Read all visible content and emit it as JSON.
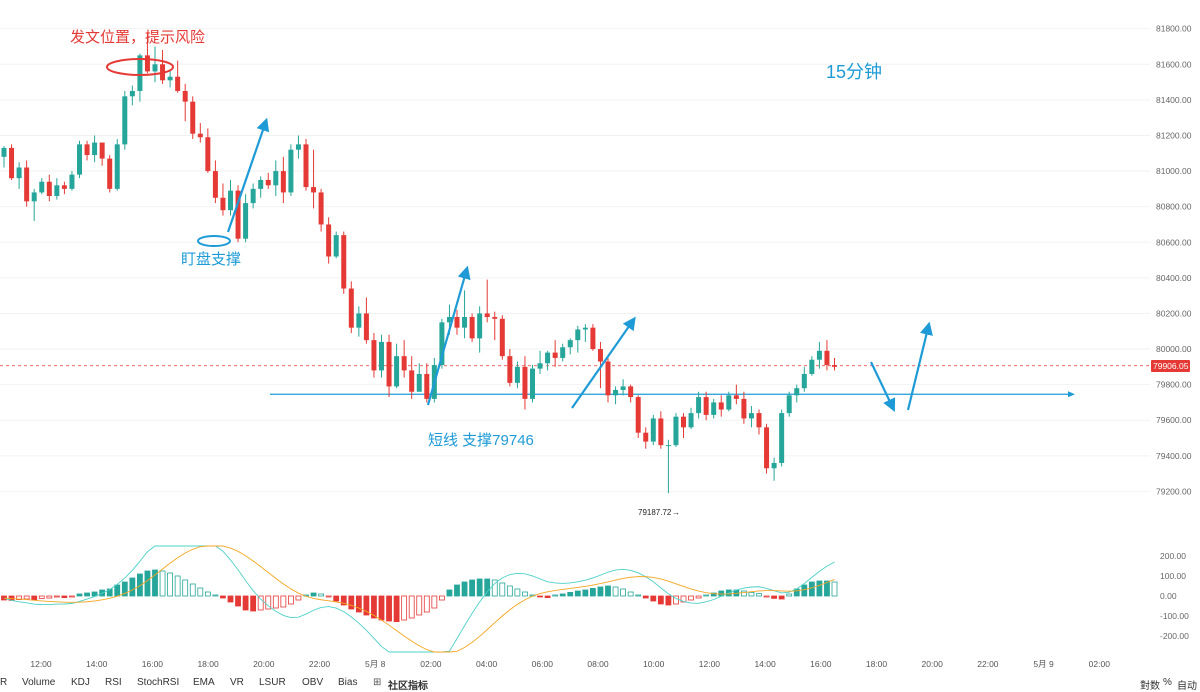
{
  "annotations": {
    "post_position": "发文位置，提示风险",
    "timeframe": "15分钟",
    "watch_support": "盯盘支撑",
    "short_support": "短线 支撑79746",
    "low_label": "79187.72"
  },
  "current_price": {
    "value": "79906.05",
    "color": "#e53935"
  },
  "support_line": {
    "value": 79746,
    "color": "#1e9bd7"
  },
  "colors": {
    "up": "#26a69a",
    "down": "#e53935",
    "annotation_red": "#e53935",
    "annotation_blue": "#1e9bd7"
  },
  "indicator_tabs": [
    "R",
    "Volume",
    "KDJ",
    "RSI",
    "StochRSI",
    "EMA",
    "VR",
    "LSUR",
    "OBV",
    "Bias"
  ],
  "community_label": "社区指标",
  "bottom_right": {
    "auto_fit": "對",
    "log": "對数",
    "percent": "%",
    "auto": "自动"
  },
  "chart_data": {
    "type": "candlestick",
    "price_axis": {
      "ticks": [
        "81800.00",
        "81600.00",
        "81400.00",
        "81200.00",
        "81000.00",
        "80800.00",
        "80600.00",
        "80400.00",
        "80200.00",
        "80000.00",
        "79800.00",
        "79600.00",
        "79400.00",
        "79200.00"
      ],
      "range": [
        79090,
        81860
      ]
    },
    "macd_axis": {
      "ticks": [
        "200.00",
        "100.00",
        "0.00",
        "-100.00",
        "-200.00"
      ],
      "range": [
        -290,
        260
      ]
    },
    "time_axis": {
      "labels": [
        "12:00",
        "14:00",
        "16:00",
        "18:00",
        "20:00",
        "22:00",
        "5月 8",
        "02:00",
        "04:00",
        "06:00",
        "08:00",
        "10:00",
        "12:00",
        "14:00",
        "16:00",
        "18:00",
        "20:00",
        "22:00",
        "5月 9",
        "02:00"
      ]
    },
    "candles": [
      [
        81080,
        81140,
        81020,
        81130
      ],
      [
        81130,
        81150,
        80950,
        80960
      ],
      [
        80960,
        81050,
        80900,
        81020
      ],
      [
        81020,
        81060,
        80800,
        80830
      ],
      [
        80830,
        80900,
        80720,
        80880
      ],
      [
        80880,
        80960,
        80870,
        80940
      ],
      [
        80940,
        80980,
        80830,
        80860
      ],
      [
        80860,
        80960,
        80840,
        80920
      ],
      [
        80920,
        80940,
        80870,
        80900
      ],
      [
        80900,
        81000,
        80890,
        80980
      ],
      [
        80980,
        81170,
        80960,
        81150
      ],
      [
        81150,
        81170,
        81060,
        81090
      ],
      [
        81090,
        81200,
        81050,
        81160
      ],
      [
        81160,
        81160,
        81030,
        81070
      ],
      [
        81070,
        81090,
        80880,
        80900
      ],
      [
        80900,
        81180,
        80890,
        81150
      ],
      [
        81150,
        81450,
        81120,
        81420
      ],
      [
        81420,
        81480,
        81370,
        81450
      ],
      [
        81450,
        81660,
        81390,
        81650
      ],
      [
        81650,
        81780,
        81550,
        81560
      ],
      [
        81560,
        81700,
        81500,
        81600
      ],
      [
        81600,
        81680,
        81490,
        81510
      ],
      [
        81510,
        81570,
        81470,
        81530
      ],
      [
        81530,
        81620,
        81440,
        81450
      ],
      [
        81450,
        81490,
        81280,
        81390
      ],
      [
        81390,
        81420,
        81180,
        81210
      ],
      [
        81210,
        81270,
        81160,
        81190
      ],
      [
        81190,
        81240,
        80990,
        81000
      ],
      [
        81000,
        81060,
        80820,
        80850
      ],
      [
        80850,
        80930,
        80750,
        80780
      ],
      [
        80780,
        80950,
        80750,
        80890
      ],
      [
        80890,
        80920,
        80600,
        80620
      ],
      [
        80620,
        80870,
        80600,
        80820
      ],
      [
        80820,
        80930,
        80790,
        80900
      ],
      [
        80900,
        80970,
        80850,
        80950
      ],
      [
        80950,
        80990,
        80900,
        80920
      ],
      [
        80920,
        81060,
        80860,
        81000
      ],
      [
        81000,
        81080,
        80820,
        80880
      ],
      [
        80880,
        81150,
        80860,
        81120
      ],
      [
        81120,
        81200,
        81070,
        81150
      ],
      [
        81150,
        81180,
        80890,
        80910
      ],
      [
        80910,
        81120,
        80790,
        80880
      ],
      [
        80880,
        80900,
        80660,
        80700
      ],
      [
        80700,
        80740,
        80480,
        80520
      ],
      [
        80520,
        80660,
        80510,
        80640
      ],
      [
        80640,
        80660,
        80310,
        80340
      ],
      [
        80340,
        80380,
        80090,
        80120
      ],
      [
        80120,
        80240,
        80070,
        80200
      ],
      [
        80200,
        80290,
        80030,
        80050
      ],
      [
        80050,
        80090,
        79840,
        79880
      ],
      [
        79880,
        80080,
        79840,
        80040
      ],
      [
        80040,
        80080,
        79730,
        79790
      ],
      [
        79790,
        80030,
        79780,
        79960
      ],
      [
        79960,
        80050,
        79840,
        79880
      ],
      [
        79880,
        79960,
        79720,
        79760
      ],
      [
        79760,
        79920,
        79760,
        79860
      ],
      [
        79860,
        79920,
        79700,
        79720
      ],
      [
        79720,
        79950,
        79700,
        79910
      ],
      [
        79910,
        80170,
        79890,
        80150
      ],
      [
        80150,
        80250,
        80080,
        80180
      ],
      [
        80180,
        80220,
        80080,
        80120
      ],
      [
        80120,
        80330,
        80060,
        80180
      ],
      [
        80180,
        80200,
        80040,
        80060
      ],
      [
        80060,
        80240,
        79980,
        80200
      ],
      [
        80200,
        80390,
        80150,
        80180
      ],
      [
        80180,
        80210,
        80050,
        80170
      ],
      [
        80170,
        80190,
        79940,
        79960
      ],
      [
        79960,
        80000,
        79790,
        79810
      ],
      [
        79810,
        79930,
        79780,
        79900
      ],
      [
        79900,
        79960,
        79660,
        79720
      ],
      [
        79720,
        79910,
        79700,
        79890
      ],
      [
        79890,
        79990,
        79860,
        79920
      ],
      [
        79920,
        79990,
        79880,
        79980
      ],
      [
        79980,
        80050,
        79900,
        79950
      ],
      [
        79950,
        80030,
        79930,
        80010
      ],
      [
        80010,
        80060,
        79970,
        80050
      ],
      [
        80050,
        80130,
        79980,
        80110
      ],
      [
        80110,
        80140,
        80040,
        80120
      ],
      [
        80120,
        80140,
        79990,
        80000
      ],
      [
        80000,
        80040,
        79780,
        79930
      ],
      [
        79930,
        79950,
        79700,
        79740
      ],
      [
        79740,
        79790,
        79690,
        79770
      ],
      [
        79770,
        79830,
        79740,
        79790
      ],
      [
        79790,
        79800,
        79700,
        79730
      ],
      [
        79730,
        79740,
        79500,
        79530
      ],
      [
        79530,
        79560,
        79440,
        79480
      ],
      [
        79480,
        79630,
        79460,
        79610
      ],
      [
        79610,
        79650,
        79440,
        79460
      ],
      [
        79460,
        79490,
        79190,
        79460
      ],
      [
        79460,
        79640,
        79450,
        79620
      ],
      [
        79620,
        79640,
        79500,
        79560
      ],
      [
        79560,
        79670,
        79550,
        79640
      ],
      [
        79640,
        79760,
        79610,
        79730
      ],
      [
        79730,
        79760,
        79600,
        79630
      ],
      [
        79630,
        79720,
        79610,
        79700
      ],
      [
        79700,
        79740,
        79620,
        79660
      ],
      [
        79660,
        79760,
        79650,
        79740
      ],
      [
        79740,
        79800,
        79690,
        79720
      ],
      [
        79720,
        79760,
        79580,
        79610
      ],
      [
        79610,
        79680,
        79560,
        79640
      ],
      [
        79640,
        79660,
        79520,
        79560
      ],
      [
        79560,
        79580,
        79300,
        79330
      ],
      [
        79330,
        79390,
        79260,
        79360
      ],
      [
        79360,
        79660,
        79340,
        79640
      ],
      [
        79640,
        79760,
        79620,
        79740
      ],
      [
        79740,
        79800,
        79700,
        79780
      ],
      [
        79780,
        79900,
        79760,
        79860
      ],
      [
        79860,
        79960,
        79850,
        79940
      ],
      [
        79940,
        80040,
        79890,
        79990
      ],
      [
        79990,
        80050,
        79880,
        79910
      ],
      [
        79910,
        79950,
        79880,
        79900
      ]
    ],
    "macd_histogram": [
      -20,
      -22,
      -18,
      -15,
      -20,
      -12,
      -10,
      -5,
      -8,
      -3,
      10,
      15,
      20,
      30,
      35,
      55,
      70,
      90,
      110,
      125,
      130,
      125,
      115,
      100,
      80,
      60,
      40,
      20,
      5,
      -10,
      -30,
      -50,
      -70,
      -75,
      -70,
      -65,
      -60,
      -55,
      -40,
      -20,
      5,
      15,
      10,
      -5,
      -25,
      -45,
      -65,
      -80,
      -95,
      -110,
      -120,
      -125,
      -128,
      -120,
      -110,
      -95,
      -80,
      -60,
      -20,
      30,
      55,
      70,
      80,
      85,
      85,
      80,
      65,
      50,
      35,
      20,
      5,
      -5,
      -8,
      5,
      10,
      18,
      25,
      30,
      38,
      45,
      50,
      45,
      35,
      20,
      5,
      -10,
      -25,
      -40,
      -45,
      -40,
      -30,
      -20,
      -10,
      5,
      15,
      25,
      30,
      30,
      25,
      18,
      12,
      -5,
      -12,
      -15,
      10,
      35,
      55,
      70,
      75,
      75,
      70
    ]
  }
}
